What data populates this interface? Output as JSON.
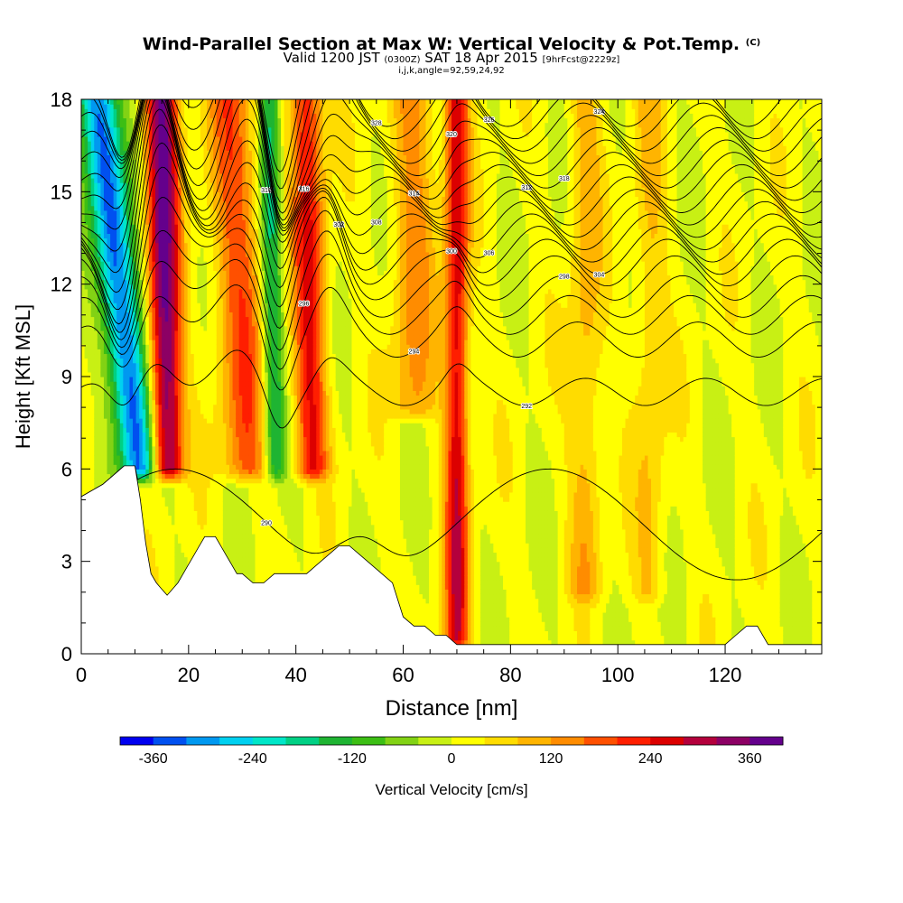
{
  "title": {
    "main": "Wind-Parallel Section at Max W: Vertical Velocity & Pot.Temp.",
    "copyright": "(C)",
    "valid_prefix": "Valid 1200 JST",
    "valid_utc": "(0300Z)",
    "valid_date": "SAT 18 Apr 2015",
    "forecast": "[9hrFcst@2229z]",
    "indices": "i,j,k,angle=92,59,24,92"
  },
  "chart_data": {
    "type": "heatmap",
    "xlabel": "Distance [nm]",
    "ylabel": "Height [Kft MSL]",
    "xlim": [
      0,
      138
    ],
    "ylim": [
      0,
      18
    ],
    "x_ticks": [
      0,
      20,
      40,
      60,
      80,
      100,
      120
    ],
    "y_ticks": [
      0,
      3,
      6,
      9,
      12,
      15,
      18
    ],
    "colorbar": {
      "label": "Vertical Velocity [cm/s]",
      "min": -400,
      "max": 400,
      "step": 40,
      "tick_values": [
        -360,
        -240,
        -120,
        0,
        120,
        240,
        360
      ],
      "tick_labels": [
        "-360",
        "-240",
        "-120",
        "0",
        "120",
        "240",
        "360"
      ],
      "colors": [
        "#0000f0",
        "#0050f0",
        "#0098f0",
        "#00d0f0",
        "#00e6c8",
        "#00d084",
        "#1eb432",
        "#3cbe14",
        "#82d214",
        "#c8f014",
        "#ffff00",
        "#ffdc00",
        "#ffb400",
        "#ff8c00",
        "#ff5000",
        "#ff1e00",
        "#dc0000",
        "#b4003c",
        "#8c0064",
        "#64008c"
      ]
    },
    "terrain_profile": {
      "x": [
        0,
        2,
        4,
        6,
        8,
        10,
        11,
        12,
        13,
        14,
        15,
        16,
        17,
        18,
        19,
        20,
        21,
        22,
        23,
        24,
        25,
        26,
        27,
        28,
        29,
        30,
        32,
        34,
        36,
        38,
        40,
        42,
        44,
        46,
        48,
        50,
        52,
        54,
        56,
        58,
        60,
        62,
        64,
        66,
        68,
        70,
        72,
        80,
        90,
        100,
        110,
        120,
        122,
        124,
        126,
        128,
        130,
        138
      ],
      "height": [
        5.1,
        5.3,
        5.5,
        5.8,
        6.1,
        6.1,
        5.0,
        3.6,
        2.6,
        2.3,
        2.1,
        1.9,
        2.1,
        2.3,
        2.6,
        2.9,
        3.2,
        3.5,
        3.8,
        3.8,
        3.8,
        3.5,
        3.2,
        2.9,
        2.6,
        2.6,
        2.3,
        2.3,
        2.6,
        2.6,
        2.6,
        2.6,
        2.9,
        3.2,
        3.5,
        3.5,
        3.2,
        2.9,
        2.6,
        2.3,
        1.2,
        0.9,
        0.9,
        0.6,
        0.6,
        0.3,
        0.3,
        0.3,
        0.3,
        0.3,
        0.3,
        0.3,
        0.6,
        0.9,
        0.9,
        0.3,
        0.3,
        0.3
      ]
    },
    "velocity_features": [
      {
        "type": "downdraft",
        "x_base": 11,
        "z_base": 6,
        "x_top": 3,
        "z_top": 18,
        "width_nm": 3.5,
        "peak_cms": -360
      },
      {
        "type": "updraft",
        "x_base": 16,
        "z_base": 6,
        "x_top": 15,
        "z_top": 18,
        "width_nm": 3.0,
        "peak_cms": 360
      },
      {
        "type": "updraft",
        "x_base": 31,
        "z_base": 6,
        "x_top": 28,
        "z_top": 18,
        "width_nm": 4.5,
        "peak_cms": 170
      },
      {
        "type": "downdraft",
        "x_base": 36,
        "z_base": 6,
        "x_top": 35,
        "z_top": 18,
        "width_nm": 2.0,
        "peak_cms": -180
      },
      {
        "type": "updraft",
        "x_base": 43,
        "z_base": 6,
        "x_top": 42,
        "z_top": 18,
        "width_nm": 3.0,
        "peak_cms": 230
      },
      {
        "type": "updraft",
        "x_base": 70,
        "z_base": 0.5,
        "x_top": 70,
        "z_top": 17,
        "width_nm": 2.2,
        "peak_cms": 260
      },
      {
        "type": "updraft",
        "x_base": 62,
        "z_base": 8,
        "x_top": 62,
        "z_top": 18,
        "width_nm": 4.0,
        "peak_cms": 120
      },
      {
        "type": "updraft",
        "x_base": 94,
        "z_base": 2,
        "x_top": 94,
        "z_top": 18,
        "width_nm": 3.0,
        "peak_cms": 90
      },
      {
        "type": "updraft",
        "x_base": 106,
        "z_base": 2,
        "x_top": 106,
        "z_top": 18,
        "width_nm": 3.0,
        "peak_cms": 70
      }
    ],
    "theta_isolines": {
      "base_heights_kft": [
        6.5,
        8.5,
        10.2,
        11.0,
        11.6,
        12.2,
        12.7,
        13.1,
        13.5,
        13.9,
        14.3,
        14.7,
        15.1,
        15.5,
        15.9,
        16.3,
        16.7,
        17.1,
        17.5,
        17.9
      ],
      "contour_labels": [
        "290",
        "292",
        "294",
        "296",
        "298",
        "300",
        "302",
        "304",
        "306",
        "308",
        "310",
        "312",
        "314",
        "316",
        "318",
        "320",
        "322",
        "324",
        "326",
        "328"
      ]
    },
    "grid": false
  }
}
